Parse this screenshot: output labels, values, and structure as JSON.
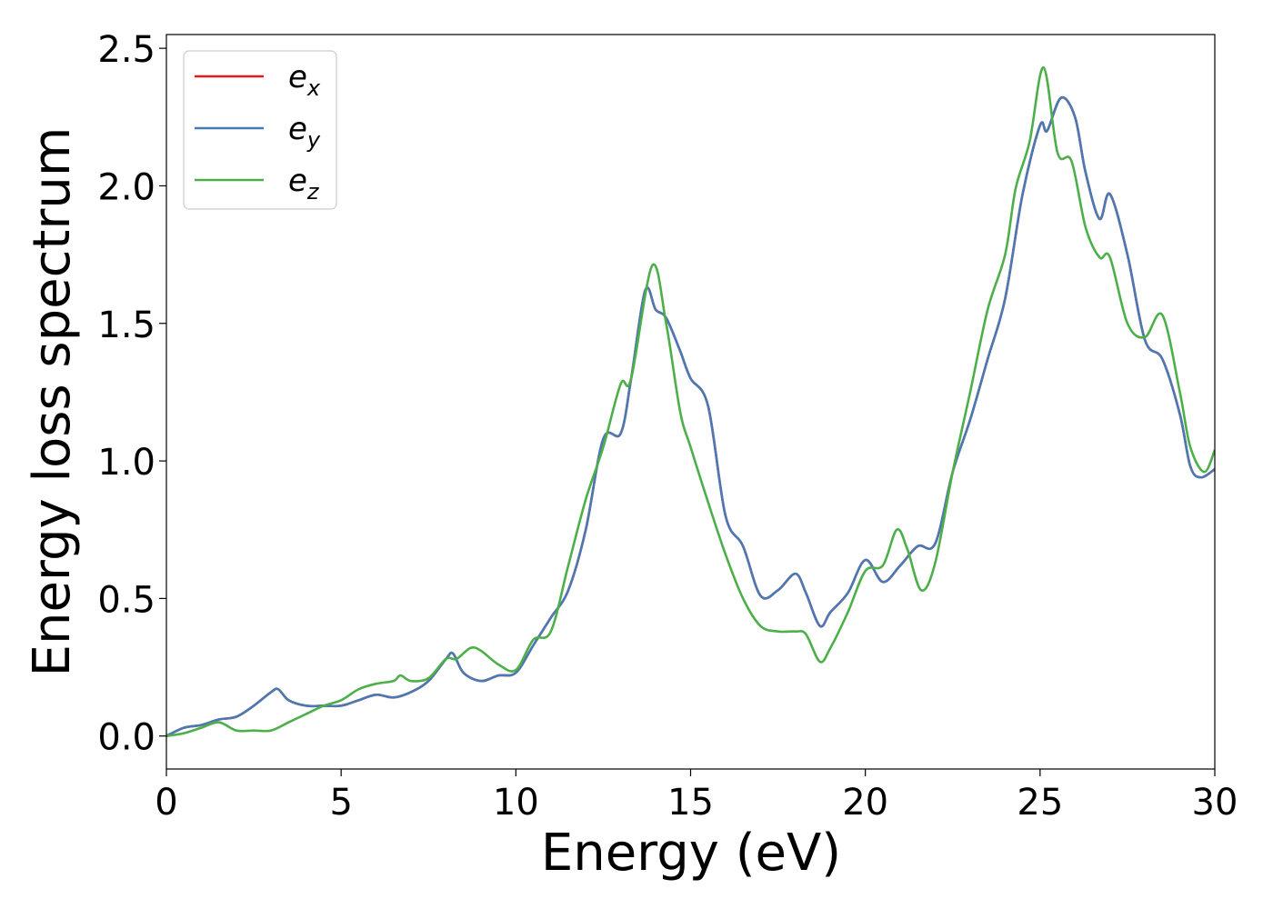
{
  "chart_data": {
    "type": "line",
    "title": "",
    "xlabel": "Energy (eV)",
    "ylabel": "Energy loss spectrum",
    "xlim": [
      0,
      30
    ],
    "ylim": [
      -0.12,
      2.55
    ],
    "xticks": [
      "0",
      "5",
      "10",
      "15",
      "20",
      "25",
      "30"
    ],
    "yticks": [
      "0.0",
      "0.5",
      "1.0",
      "1.5",
      "2.0",
      "2.5"
    ],
    "grid": false,
    "legend_position": "top-left",
    "series": [
      {
        "name": "e_x",
        "label_base": "e",
        "label_sub": "x",
        "color": "#e41a1c",
        "x": [
          0,
          0.5,
          1,
          1.5,
          2,
          2.5,
          3,
          3.2,
          3.5,
          4,
          4.5,
          5,
          5.5,
          6,
          6.5,
          7,
          7.5,
          8,
          8.2,
          8.5,
          9,
          9.5,
          10,
          10.5,
          11,
          11.5,
          12,
          12.5,
          13,
          13.3,
          13.7,
          14,
          14.3,
          14.7,
          15,
          15.5,
          16,
          16.5,
          17,
          17.5,
          18,
          18.3,
          18.7,
          19,
          19.5,
          20,
          20.5,
          21,
          21.5,
          22,
          22.5,
          23,
          23.5,
          24,
          24.5,
          25,
          25.2,
          25.6,
          26,
          26.3,
          26.7,
          27,
          27.5,
          28,
          28.5,
          29,
          29.3,
          29.6,
          30
        ],
        "y": [
          0,
          0.03,
          0.04,
          0.06,
          0.07,
          0.11,
          0.16,
          0.17,
          0.13,
          0.11,
          0.11,
          0.11,
          0.13,
          0.15,
          0.14,
          0.16,
          0.2,
          0.28,
          0.3,
          0.23,
          0.2,
          0.22,
          0.23,
          0.33,
          0.43,
          0.53,
          0.75,
          1.08,
          1.1,
          1.3,
          1.62,
          1.55,
          1.52,
          1.4,
          1.3,
          1.2,
          0.8,
          0.69,
          0.51,
          0.53,
          0.59,
          0.52,
          0.4,
          0.45,
          0.52,
          0.64,
          0.56,
          0.62,
          0.69,
          0.7,
          0.96,
          1.15,
          1.37,
          1.59,
          1.97,
          2.22,
          2.2,
          2.32,
          2.25,
          2.05,
          1.88,
          1.97,
          1.75,
          1.44,
          1.37,
          1.17,
          0.98,
          0.94,
          0.97
        ]
      },
      {
        "name": "e_y",
        "label_base": "e",
        "label_sub": "y",
        "color": "#4a79b3",
        "x": [
          0,
          0.5,
          1,
          1.5,
          2,
          2.5,
          3,
          3.2,
          3.5,
          4,
          4.5,
          5,
          5.5,
          6,
          6.5,
          7,
          7.5,
          8,
          8.2,
          8.5,
          9,
          9.5,
          10,
          10.5,
          11,
          11.5,
          12,
          12.5,
          13,
          13.3,
          13.7,
          14,
          14.3,
          14.7,
          15,
          15.5,
          16,
          16.5,
          17,
          17.5,
          18,
          18.3,
          18.7,
          19,
          19.5,
          20,
          20.5,
          21,
          21.5,
          22,
          22.5,
          23,
          23.5,
          24,
          24.5,
          25,
          25.2,
          25.6,
          26,
          26.3,
          26.7,
          27,
          27.5,
          28,
          28.5,
          29,
          29.3,
          29.6,
          30
        ],
        "y": [
          0,
          0.03,
          0.04,
          0.06,
          0.07,
          0.11,
          0.16,
          0.17,
          0.13,
          0.11,
          0.11,
          0.11,
          0.13,
          0.15,
          0.14,
          0.16,
          0.2,
          0.28,
          0.3,
          0.23,
          0.2,
          0.22,
          0.23,
          0.33,
          0.43,
          0.53,
          0.75,
          1.08,
          1.1,
          1.3,
          1.62,
          1.55,
          1.52,
          1.4,
          1.3,
          1.2,
          0.8,
          0.69,
          0.51,
          0.53,
          0.59,
          0.52,
          0.4,
          0.45,
          0.52,
          0.64,
          0.56,
          0.62,
          0.69,
          0.7,
          0.96,
          1.15,
          1.37,
          1.59,
          1.97,
          2.22,
          2.2,
          2.32,
          2.25,
          2.05,
          1.88,
          1.97,
          1.75,
          1.44,
          1.37,
          1.17,
          0.98,
          0.94,
          0.97
        ]
      },
      {
        "name": "e_z",
        "label_base": "e",
        "label_sub": "z",
        "color": "#4daf4a",
        "x": [
          0,
          0.5,
          1,
          1.5,
          2,
          2.5,
          3,
          3.5,
          4,
          4.5,
          5,
          5.5,
          6,
          6.5,
          6.7,
          7,
          7.5,
          8,
          8.3,
          8.7,
          9,
          9.5,
          10,
          10.5,
          11,
          11.5,
          12,
          12.5,
          13,
          13.3,
          13.9,
          14.3,
          14.7,
          15,
          15.5,
          16,
          16.5,
          17,
          17.5,
          18,
          18.3,
          18.7,
          19,
          19.5,
          20,
          20.5,
          20.9,
          21.2,
          21.6,
          22,
          22.5,
          23,
          23.5,
          24,
          24.3,
          24.7,
          25.1,
          25.5,
          25.9,
          26.3,
          26.7,
          27,
          27.5,
          28,
          28.5,
          29,
          29.3,
          29.7,
          30
        ],
        "y": [
          0,
          0.01,
          0.03,
          0.05,
          0.02,
          0.02,
          0.02,
          0.05,
          0.08,
          0.11,
          0.13,
          0.17,
          0.19,
          0.2,
          0.22,
          0.2,
          0.21,
          0.28,
          0.28,
          0.32,
          0.31,
          0.26,
          0.24,
          0.35,
          0.38,
          0.62,
          0.86,
          1.05,
          1.28,
          1.3,
          1.71,
          1.5,
          1.18,
          1.05,
          0.85,
          0.66,
          0.5,
          0.4,
          0.38,
          0.38,
          0.37,
          0.27,
          0.32,
          0.45,
          0.6,
          0.62,
          0.75,
          0.68,
          0.53,
          0.63,
          0.96,
          1.25,
          1.55,
          1.75,
          1.99,
          2.16,
          2.43,
          2.12,
          2.09,
          1.85,
          1.74,
          1.74,
          1.5,
          1.45,
          1.53,
          1.25,
          1.05,
          0.96,
          1.04
        ]
      }
    ]
  }
}
